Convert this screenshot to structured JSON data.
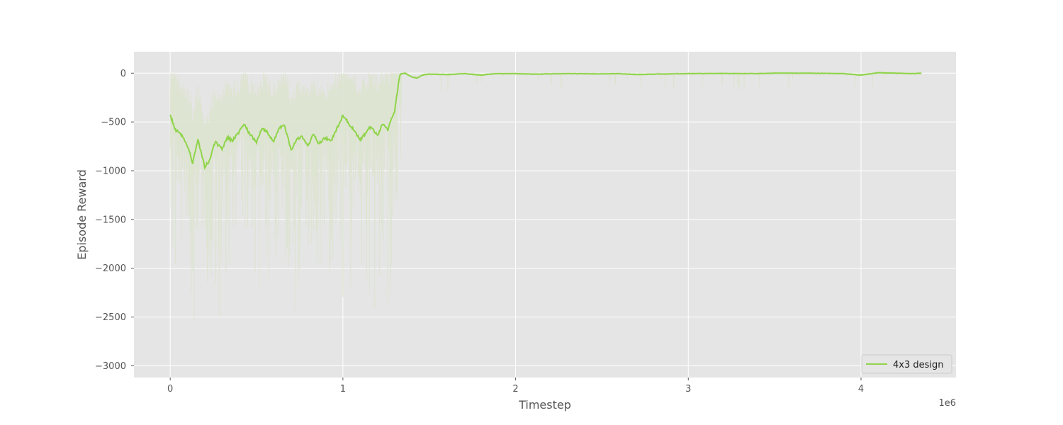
{
  "chart_data": {
    "type": "line",
    "xlabel": "Timestep",
    "ylabel": "Episode Reward",
    "x_offset_text": "1e6",
    "xlim": [
      -0.21,
      4.55
    ],
    "ylim": [
      -3120,
      220
    ],
    "x_ticks": [
      0,
      1,
      2,
      3,
      4
    ],
    "x_tick_labels": [
      "0",
      "1",
      "2",
      "3",
      "4"
    ],
    "y_ticks": [
      0,
      -500,
      -1000,
      -1500,
      -2000,
      -2500,
      -3000
    ],
    "y_tick_labels": [
      "0",
      "−500",
      "−1000",
      "−1500",
      "−2000",
      "−2500",
      "−3000"
    ],
    "grid": true,
    "legend_position": "lower-right",
    "colors": {
      "line": "#8fd44a",
      "raw": "#dde3cf",
      "plot_bg": "#e5e5e5",
      "grid": "#ffffff"
    },
    "series": [
      {
        "name": "4x3 design",
        "x": [
          0,
          0.03,
          0.06,
          0.1,
          0.13,
          0.16,
          0.2,
          0.23,
          0.26,
          0.3,
          0.33,
          0.36,
          0.4,
          0.43,
          0.46,
          0.5,
          0.53,
          0.56,
          0.6,
          0.63,
          0.66,
          0.7,
          0.73,
          0.76,
          0.8,
          0.83,
          0.86,
          0.9,
          0.93,
          0.96,
          1.0,
          1.03,
          1.06,
          1.1,
          1.13,
          1.16,
          1.2,
          1.23,
          1.26,
          1.3,
          1.33,
          1.36,
          1.4,
          1.43,
          1.46,
          1.5,
          1.6,
          1.7,
          1.8,
          1.85,
          1.9,
          2.0,
          2.1,
          2.3,
          2.5,
          2.6,
          2.7,
          2.8,
          3.0,
          3.2,
          3.4,
          3.5,
          3.7,
          3.9,
          4.0,
          4.1,
          4.2,
          4.3,
          4.35
        ],
        "values": [
          -430,
          -580,
          -620,
          -740,
          -920,
          -680,
          -960,
          -890,
          -700,
          -780,
          -660,
          -690,
          -600,
          -530,
          -620,
          -710,
          -560,
          -600,
          -700,
          -560,
          -530,
          -790,
          -680,
          -650,
          -740,
          -620,
          -720,
          -660,
          -700,
          -590,
          -430,
          -510,
          -570,
          -680,
          -620,
          -550,
          -640,
          -520,
          -580,
          -380,
          -10,
          0,
          -40,
          -50,
          -20,
          -10,
          -15,
          -5,
          -20,
          -10,
          -5,
          -5,
          -10,
          -5,
          -8,
          -5,
          -15,
          -10,
          -5,
          -3,
          -5,
          0,
          0,
          -5,
          -20,
          5,
          0,
          -5,
          0
        ]
      }
    ]
  }
}
